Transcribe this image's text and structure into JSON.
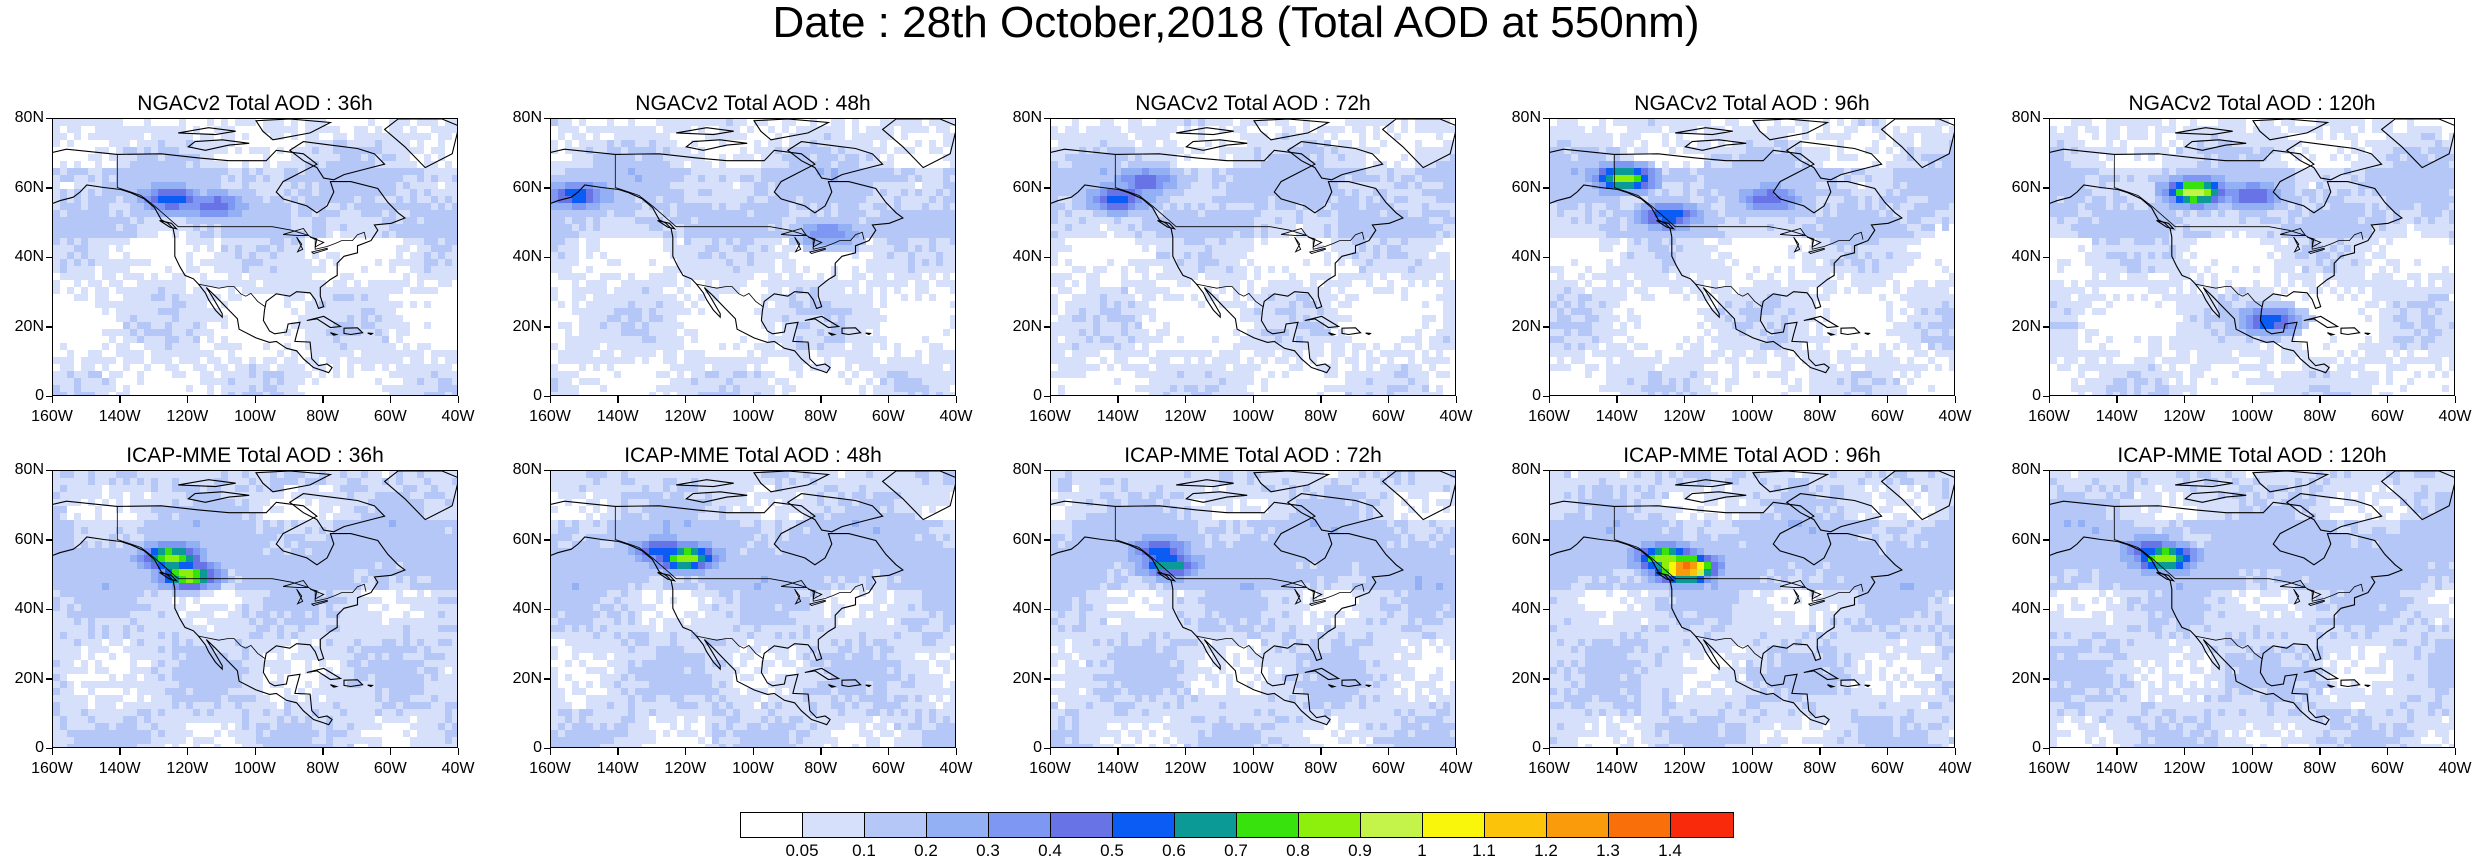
{
  "title": "Date : 28th October,2018 (Total AOD at 550nm)",
  "panels": [
    {
      "title": "NGACv2 Total AOD : 36h",
      "model": "NGACv2",
      "lead_hours": 36,
      "plumes": [
        [
          -125,
          57,
          0.5
        ],
        [
          -112,
          55,
          0.4
        ]
      ]
    },
    {
      "title": "NGACv2 Total AOD : 48h",
      "model": "NGACv2",
      "lead_hours": 48,
      "plumes": [
        [
          -152,
          58,
          0.5
        ],
        [
          -78,
          47,
          0.3
        ]
      ]
    },
    {
      "title": "NGACv2 Total AOD : 72h",
      "model": "NGACv2",
      "lead_hours": 72,
      "plumes": [
        [
          -140,
          57,
          0.5
        ],
        [
          -132,
          62,
          0.4
        ]
      ]
    },
    {
      "title": "NGACv2 Total AOD : 96h",
      "model": "NGACv2",
      "lead_hours": 96,
      "plumes": [
        [
          -138,
          63,
          0.8
        ],
        [
          -125,
          52,
          0.5
        ],
        [
          -95,
          57,
          0.4
        ]
      ]
    },
    {
      "title": "NGACv2 Total AOD : 120h",
      "model": "NGACv2",
      "lead_hours": 120,
      "plumes": [
        [
          -117,
          59,
          0.9
        ],
        [
          -100,
          58,
          0.4
        ],
        [
          -95,
          22,
          0.5
        ]
      ]
    },
    {
      "title": "ICAP-MME Total AOD : 36h",
      "model": "ICAP-MME",
      "lead_hours": 36,
      "plumes": [
        [
          -125,
          55,
          0.8
        ],
        [
          -120,
          50,
          0.8
        ]
      ]
    },
    {
      "title": "ICAP-MME Total AOD : 48h",
      "model": "ICAP-MME",
      "lead_hours": 48,
      "plumes": [
        [
          -127,
          57,
          0.5
        ],
        [
          -120,
          55,
          0.8
        ]
      ]
    },
    {
      "title": "ICAP-MME Total AOD : 72h",
      "model": "ICAP-MME",
      "lead_hours": 72,
      "plumes": [
        [
          -128,
          57,
          0.5
        ],
        [
          -125,
          53,
          0.6
        ]
      ]
    },
    {
      "title": "ICAP-MME Total AOD : 96h",
      "model": "ICAP-MME",
      "lead_hours": 96,
      "plumes": [
        [
          -126,
          55,
          0.8
        ],
        [
          -120,
          52,
          1.3
        ]
      ]
    },
    {
      "title": "ICAP-MME Total AOD : 120h",
      "model": "ICAP-MME",
      "lead_hours": 120,
      "plumes": [
        [
          -130,
          57,
          0.5
        ],
        [
          -126,
          55,
          0.8
        ]
      ]
    }
  ],
  "map_extent": {
    "lon_min": -160,
    "lon_max": -40,
    "lat_min": 0,
    "lat_max": 80
  },
  "lat_ticks": [
    "0",
    "20N",
    "40N",
    "60N",
    "80N"
  ],
  "lon_ticks": [
    "160W",
    "140W",
    "120W",
    "100W",
    "80W",
    "60W",
    "40W"
  ],
  "colorbar": {
    "colors": [
      "#ffffff",
      "#d6e0fb",
      "#b4c7f7",
      "#94b0f5",
      "#7d97f2",
      "#6873e6",
      "#0a5cf5",
      "#0c9a96",
      "#38e20c",
      "#8df00c",
      "#c4f34a",
      "#f9f50b",
      "#fbc40a",
      "#f99b0a",
      "#f9700a",
      "#f9290c"
    ],
    "labels": [
      "0.05",
      "0.1",
      "0.2",
      "0.3",
      "0.4",
      "0.5",
      "0.6",
      "0.7",
      "0.8",
      "0.9",
      "1",
      "1.1",
      "1.2",
      "1.3",
      "1.4"
    ],
    "levels": [
      0.05,
      0.1,
      0.2,
      0.3,
      0.4,
      0.5,
      0.6,
      0.7,
      0.8,
      0.9,
      1,
      1.1,
      1.2,
      1.3,
      1.4
    ]
  }
}
